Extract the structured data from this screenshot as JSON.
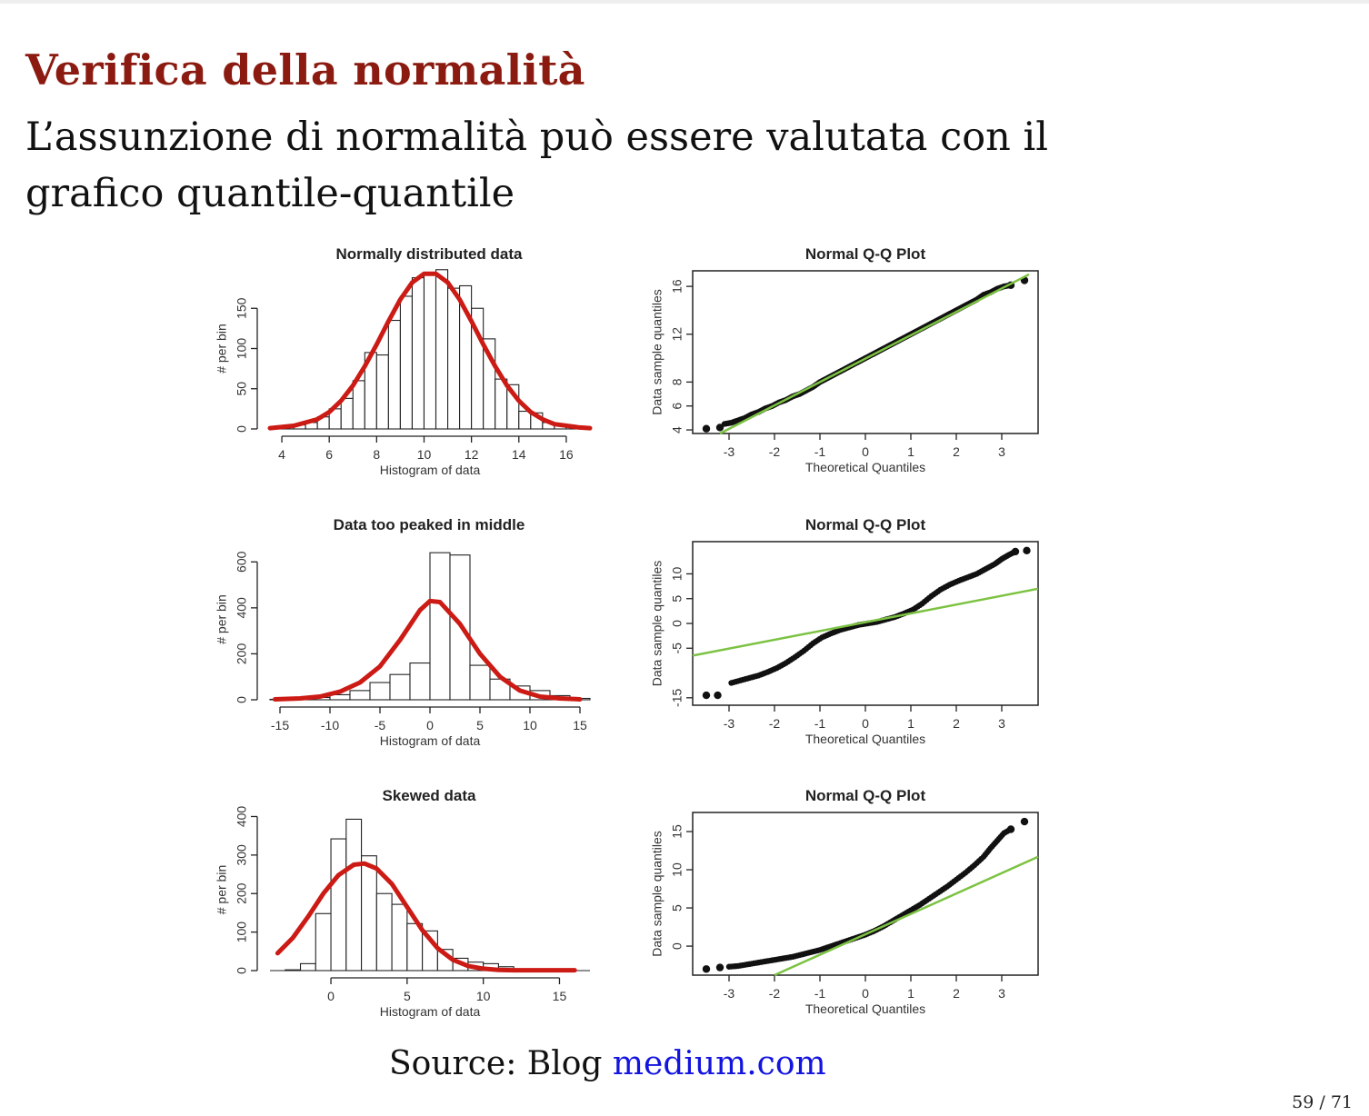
{
  "slide": {
    "title": "Verifica della normalità",
    "body_line1": "L’assunzione di normalità può essere valutata con il",
    "body_line2": "grafico quantile-quantile",
    "source_prefix": "Source: Blog ",
    "source_link": "medium.com",
    "page": "59 / 71"
  },
  "colors": {
    "title": "#8b1a10",
    "curve": "#cc1a14",
    "qq_line": "#7cc242",
    "link": "#1414e0"
  },
  "chart_data": [
    {
      "type": "bar",
      "id": "hist1",
      "title": "Normally distributed data",
      "xlabel": "Histogram of data",
      "ylabel": "# per bin",
      "xlim": [
        3.5,
        17
      ],
      "ylim": [
        0,
        200
      ],
      "xticks": [
        4,
        6,
        8,
        10,
        12,
        14,
        16
      ],
      "yticks": [
        0,
        50,
        100,
        150
      ],
      "bin_edges": [
        3.5,
        4,
        4.5,
        5,
        5.5,
        6,
        6.5,
        7,
        7.5,
        8,
        8.5,
        9,
        9.5,
        10,
        10.5,
        11,
        11.5,
        12,
        12.5,
        13,
        13.5,
        14,
        14.5,
        15,
        15.5,
        16,
        16.5,
        17
      ],
      "counts": [
        2,
        3,
        5,
        8,
        15,
        25,
        38,
        60,
        95,
        92,
        135,
        165,
        188,
        192,
        198,
        175,
        178,
        150,
        112,
        62,
        55,
        22,
        20,
        8,
        5,
        2,
        1
      ],
      "curve": {
        "x": [
          3.5,
          4.5,
          5.5,
          6,
          6.5,
          7,
          7.5,
          8,
          8.5,
          9,
          9.5,
          10,
          10.5,
          11,
          11.5,
          12,
          12.5,
          13,
          13.5,
          14,
          14.5,
          15,
          15.5,
          16.5,
          17
        ],
        "y": [
          1,
          4,
          12,
          21,
          35,
          54,
          78,
          105,
          134,
          161,
          182,
          193,
          193,
          182,
          161,
          134,
          105,
          78,
          54,
          35,
          21,
          12,
          6,
          2,
          1
        ]
      }
    },
    {
      "type": "scatter",
      "id": "qq1",
      "title": "Normal Q-Q Plot",
      "xlabel": "Theoretical Quantiles",
      "ylabel": "Data sample quantiles",
      "xlim": [
        -3.8,
        3.8
      ],
      "ylim": [
        3.7,
        17.3
      ],
      "xticks": [
        -3,
        -2,
        -1,
        0,
        1,
        2,
        3
      ],
      "yticks": [
        4,
        6,
        8,
        12,
        16
      ],
      "points": [
        [
          -3.5,
          4.1
        ],
        [
          -3.2,
          4.2
        ],
        [
          -3.1,
          4.5
        ],
        [
          -2.95,
          4.6
        ],
        [
          -2.8,
          4.8
        ],
        [
          -2.65,
          5.0
        ],
        [
          -2.5,
          5.3
        ],
        [
          -2.35,
          5.5
        ],
        [
          -2.2,
          5.8
        ],
        [
          -2.05,
          6.0
        ],
        [
          -1.9,
          6.3
        ],
        [
          -1.75,
          6.5
        ],
        [
          -1.6,
          6.8
        ],
        [
          -1.45,
          7.0
        ],
        [
          -1.3,
          7.3
        ],
        [
          -1.15,
          7.6
        ],
        [
          -1.0,
          8.0
        ],
        [
          -0.85,
          8.3
        ],
        [
          -0.7,
          8.6
        ],
        [
          -0.55,
          8.9
        ],
        [
          -0.4,
          9.2
        ],
        [
          -0.25,
          9.5
        ],
        [
          -0.1,
          9.8
        ],
        [
          0.05,
          10.1
        ],
        [
          0.2,
          10.4
        ],
        [
          0.35,
          10.7
        ],
        [
          0.5,
          11.0
        ],
        [
          0.65,
          11.3
        ],
        [
          0.8,
          11.6
        ],
        [
          0.95,
          11.9
        ],
        [
          1.1,
          12.2
        ],
        [
          1.25,
          12.5
        ],
        [
          1.4,
          12.8
        ],
        [
          1.55,
          13.1
        ],
        [
          1.7,
          13.4
        ],
        [
          1.85,
          13.7
        ],
        [
          2.0,
          14.0
        ],
        [
          2.15,
          14.3
        ],
        [
          2.3,
          14.6
        ],
        [
          2.45,
          14.9
        ],
        [
          2.6,
          15.3
        ],
        [
          2.75,
          15.5
        ],
        [
          2.9,
          15.8
        ],
        [
          3.05,
          16.0
        ],
        [
          3.2,
          16.1
        ],
        [
          3.5,
          16.5
        ]
      ],
      "line": [
        [
          -3.2,
          3.7
        ],
        [
          3.6,
          17.0
        ]
      ]
    },
    {
      "type": "bar",
      "id": "hist2",
      "title": "Data too peaked in middle",
      "xlabel": "Histogram of data",
      "ylabel": "# per bin",
      "xlim": [
        -16,
        16
      ],
      "ylim": [
        0,
        700
      ],
      "xticks": [
        -15,
        -10,
        -5,
        0,
        5,
        10,
        15
      ],
      "yticks": [
        0,
        200,
        400,
        600
      ],
      "bin_edges": [
        -16,
        -14,
        -12,
        -10,
        -8,
        -6,
        -4,
        -2,
        0,
        2,
        4,
        6,
        8,
        10,
        12,
        14,
        16
      ],
      "counts": [
        2,
        4,
        10,
        22,
        40,
        75,
        110,
        160,
        640,
        630,
        150,
        90,
        60,
        40,
        18,
        6
      ],
      "curve": {
        "x": [
          -15.5,
          -13,
          -11,
          -9,
          -7,
          -5,
          -3,
          -1,
          0,
          1,
          3,
          5,
          7,
          9,
          11,
          13,
          15
        ],
        "y": [
          2,
          6,
          14,
          35,
          75,
          145,
          260,
          390,
          430,
          425,
          330,
          200,
          100,
          40,
          14,
          6,
          2
        ]
      }
    },
    {
      "type": "scatter",
      "id": "qq2",
      "title": "Normal Q-Q Plot",
      "xlabel": "Theoretical Quantiles",
      "ylabel": "Data sample quantiles",
      "xlim": [
        -3.8,
        3.8
      ],
      "ylim": [
        -16.5,
        16.5
      ],
      "xticks": [
        -3,
        -2,
        -1,
        0,
        1,
        2,
        3
      ],
      "yticks": [
        -15,
        -5,
        0,
        5,
        10
      ],
      "points": [
        [
          -3.5,
          -14.5
        ],
        [
          -3.25,
          -14.5
        ],
        [
          -2.95,
          -12.0
        ],
        [
          -2.75,
          -11.5
        ],
        [
          -2.55,
          -11.0
        ],
        [
          -2.35,
          -10.5
        ],
        [
          -2.15,
          -9.8
        ],
        [
          -1.95,
          -9.0
        ],
        [
          -1.75,
          -8.0
        ],
        [
          -1.55,
          -6.8
        ],
        [
          -1.35,
          -5.5
        ],
        [
          -1.15,
          -4.0
        ],
        [
          -0.95,
          -2.8
        ],
        [
          -0.75,
          -2.0
        ],
        [
          -0.55,
          -1.3
        ],
        [
          -0.35,
          -0.8
        ],
        [
          -0.15,
          -0.3
        ],
        [
          0.05,
          0.0
        ],
        [
          0.25,
          0.3
        ],
        [
          0.45,
          0.8
        ],
        [
          0.65,
          1.3
        ],
        [
          0.85,
          2.0
        ],
        [
          1.05,
          2.8
        ],
        [
          1.25,
          4.0
        ],
        [
          1.45,
          5.5
        ],
        [
          1.65,
          6.8
        ],
        [
          1.85,
          7.8
        ],
        [
          2.05,
          8.6
        ],
        [
          2.25,
          9.3
        ],
        [
          2.45,
          10.0
        ],
        [
          2.65,
          11.0
        ],
        [
          2.85,
          12.0
        ],
        [
          3.0,
          13.0
        ],
        [
          3.15,
          13.8
        ],
        [
          3.3,
          14.5
        ],
        [
          3.55,
          14.7
        ]
      ],
      "line": [
        [
          -3.8,
          -6.5
        ],
        [
          3.8,
          7.0
        ]
      ]
    },
    {
      "type": "bar",
      "id": "hist3",
      "title": "Skewed data",
      "xlabel": "Histogram of data",
      "ylabel": "# per bin",
      "xlim": [
        -4,
        17
      ],
      "ylim": [
        0,
        420
      ],
      "xticks": [
        0,
        5,
        10,
        15
      ],
      "yticks": [
        0,
        100,
        200,
        300,
        400
      ],
      "bin_edges": [
        -3,
        -2,
        -1,
        0,
        1,
        2,
        3,
        4,
        5,
        6,
        7,
        8,
        9,
        10,
        11,
        12,
        13,
        14,
        15,
        16
      ],
      "counts": [
        2,
        18,
        148,
        342,
        393,
        298,
        200,
        172,
        122,
        103,
        55,
        32,
        22,
        18,
        10,
        4,
        2,
        1,
        1
      ],
      "curve": {
        "x": [
          -3.5,
          -2.5,
          -1.5,
          -0.5,
          0.5,
          1.5,
          2.2,
          3,
          4,
          5,
          6,
          7,
          8,
          9,
          10,
          11,
          12,
          13,
          14,
          16
        ],
        "y": [
          45,
          85,
          140,
          200,
          248,
          275,
          278,
          265,
          225,
          165,
          105,
          58,
          28,
          12,
          5,
          2,
          1,
          1,
          1,
          1
        ]
      }
    },
    {
      "type": "scatter",
      "id": "qq3",
      "title": "Normal Q-Q Plot",
      "xlabel": "Theoretical Quantiles",
      "ylabel": "Data sample quantiles",
      "xlim": [
        -3.8,
        3.8
      ],
      "ylim": [
        -3.8,
        17.5
      ],
      "xticks": [
        -3,
        -2,
        -1,
        0,
        1,
        2,
        3
      ],
      "yticks": [
        0,
        5,
        10,
        15
      ],
      "points": [
        [
          -3.5,
          -3.0
        ],
        [
          -3.2,
          -2.8
        ],
        [
          -3.0,
          -2.7
        ],
        [
          -2.8,
          -2.6
        ],
        [
          -2.6,
          -2.4
        ],
        [
          -2.4,
          -2.2
        ],
        [
          -2.2,
          -2.0
        ],
        [
          -2.0,
          -1.8
        ],
        [
          -1.8,
          -1.6
        ],
        [
          -1.6,
          -1.4
        ],
        [
          -1.4,
          -1.1
        ],
        [
          -1.2,
          -0.8
        ],
        [
          -1.0,
          -0.5
        ],
        [
          -0.8,
          -0.1
        ],
        [
          -0.6,
          0.3
        ],
        [
          -0.4,
          0.7
        ],
        [
          -0.2,
          1.1
        ],
        [
          0.0,
          1.5
        ],
        [
          0.2,
          2.0
        ],
        [
          0.4,
          2.6
        ],
        [
          0.6,
          3.3
        ],
        [
          0.8,
          4.0
        ],
        [
          1.0,
          4.7
        ],
        [
          1.2,
          5.4
        ],
        [
          1.4,
          6.2
        ],
        [
          1.6,
          7.0
        ],
        [
          1.8,
          7.8
        ],
        [
          2.0,
          8.7
        ],
        [
          2.2,
          9.6
        ],
        [
          2.4,
          10.6
        ],
        [
          2.6,
          11.7
        ],
        [
          2.75,
          12.8
        ],
        [
          2.9,
          13.8
        ],
        [
          3.05,
          14.8
        ],
        [
          3.2,
          15.3
        ],
        [
          3.5,
          16.3
        ]
      ],
      "line": [
        [
          -2.0,
          -3.8
        ],
        [
          3.8,
          11.7
        ]
      ]
    }
  ]
}
